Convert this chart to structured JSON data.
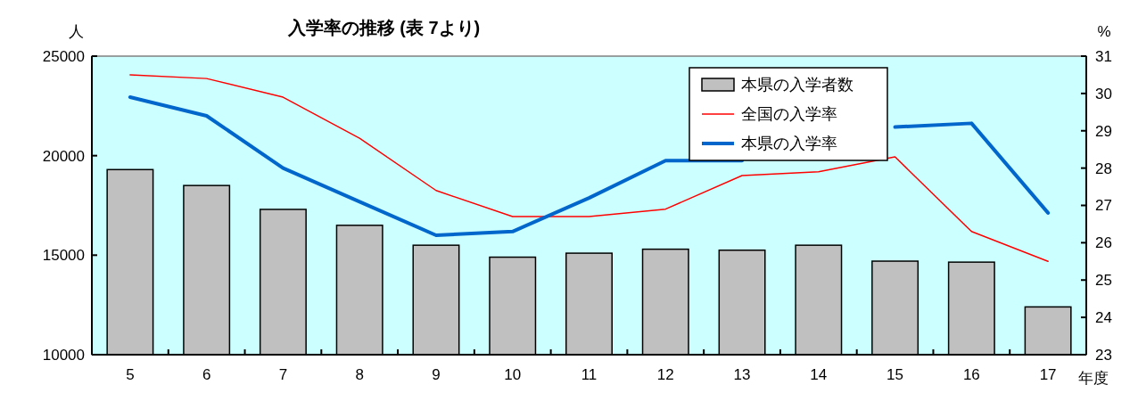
{
  "chart_data": {
    "type": "bar",
    "title": "入学率の推移 (表 7より)",
    "xlabel": "年度",
    "ylabel": "人",
    "y2label": "%",
    "categories": [
      "5",
      "6",
      "7",
      "8",
      "9",
      "10",
      "11",
      "12",
      "13",
      "14",
      "15",
      "16",
      "17"
    ],
    "series": [
      {
        "name": "本県の入学者数",
        "color": "#c0c0c0",
        "values": [
          19300,
          18500,
          17300,
          16500,
          15500,
          14900,
          15100,
          15300,
          15250,
          15500,
          14700,
          14650,
          12400
        ]
      },
      {
        "name": "全国の入学率",
        "type": "line",
        "axis": "y2",
        "color": "#ff0000",
        "values": [
          30.5,
          30.4,
          29.9,
          28.8,
          27.4,
          26.7,
          26.7,
          26.9,
          27.8,
          27.9,
          28.3,
          26.3,
          25.5
        ]
      },
      {
        "name": "本県の入学率",
        "type": "line",
        "axis": "y2",
        "color": "#0066cc",
        "values": [
          29.9,
          29.4,
          28.0,
          27.1,
          26.2,
          26.3,
          27.2,
          28.2,
          28.2,
          null,
          29.1,
          29.2,
          26.8
        ]
      }
    ],
    "ylim": [
      10000,
      25000
    ],
    "yticks": [
      10000,
      15000,
      20000,
      25000
    ],
    "y2lim": [
      23,
      31
    ],
    "y2ticks": [
      23,
      24,
      25,
      26,
      27,
      28,
      29,
      30,
      31
    ],
    "legend": "top right"
  }
}
